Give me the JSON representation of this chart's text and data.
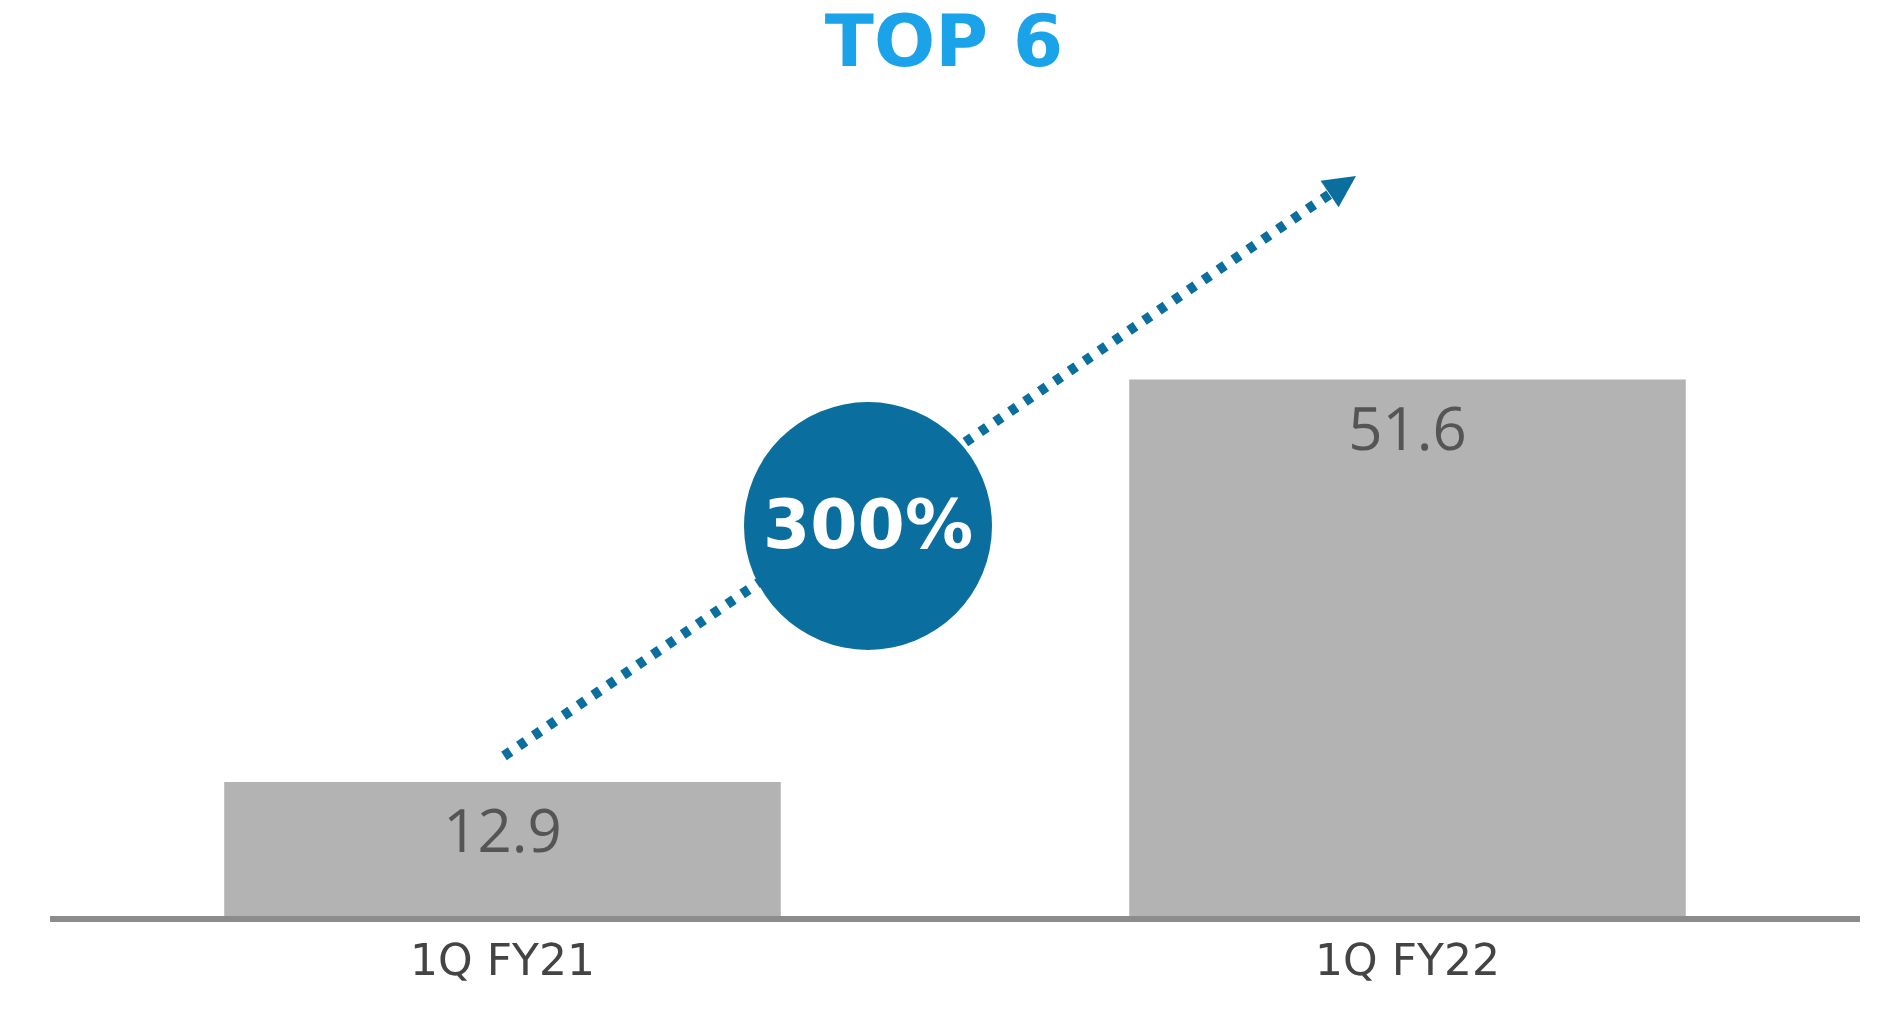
{
  "chart_data": {
    "type": "bar",
    "title": "TOP 6",
    "categories": [
      "1Q FY21",
      "1Q FY22"
    ],
    "values": [
      12.9,
      51.6
    ],
    "color": "#b3b3b3",
    "data_labels": true,
    "annotations": [
      "300%"
    ],
    "legend": false
  }
}
